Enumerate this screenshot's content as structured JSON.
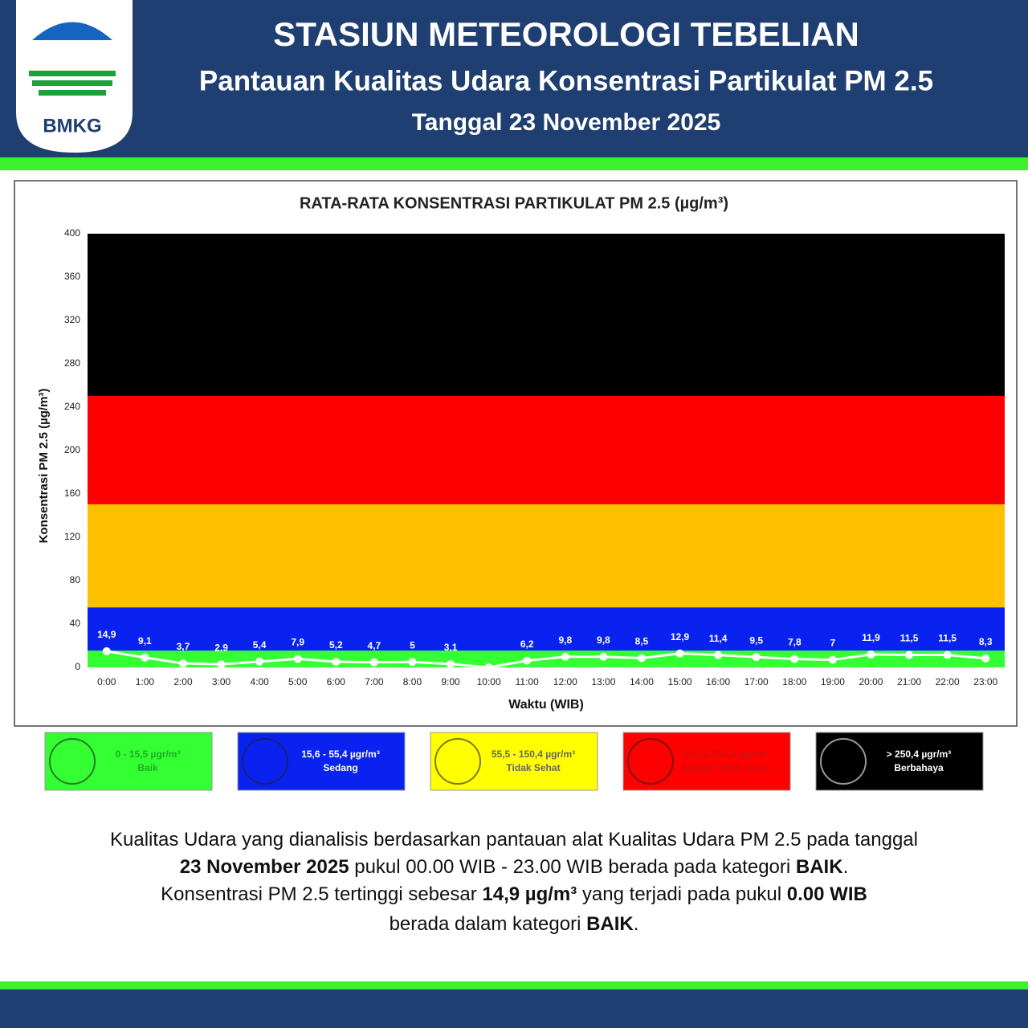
{
  "header": {
    "logo": "BMKG",
    "title": "STASIUN METEOROLOGI TEBELIAN",
    "subtitle": "Pantauan Kualitas Udara Konsentrasi Partikulat PM 2.5",
    "date": "Tanggal 23 November 2025"
  },
  "chart_data": {
    "type": "line",
    "title": "RATA-RATA KONSENTRASI PARTIKULAT PM 2.5 (µg/m³)",
    "x_label": "Waktu (WIB)",
    "y_label": "Konsentrasi PM 2.5 (µg/m³)",
    "categories": [
      "0:00",
      "1:00",
      "2:00",
      "3:00",
      "4:00",
      "5:00",
      "6:00",
      "7:00",
      "8:00",
      "9:00",
      "10:00",
      "11:00",
      "12:00",
      "13:00",
      "14:00",
      "15:00",
      "16:00",
      "17:00",
      "18:00",
      "19:00",
      "20:00",
      "21:00",
      "22:00",
      "23:00"
    ],
    "series": [
      {
        "name": "PM 2.5",
        "color": "#ffffff",
        "values": [
          14.9,
          9.1,
          3.7,
          2.9,
          5.4,
          7.9,
          5.2,
          4.7,
          5,
          3.1,
          0,
          6.2,
          9.8,
          9.8,
          8.5,
          12.9,
          11.4,
          9.5,
          7.8,
          7,
          11.9,
          11.5,
          11.5,
          8.3
        ],
        "value_labels": [
          "14,9",
          "9,1",
          "3,7",
          "2,9",
          "5,4",
          "7,9",
          "5,2",
          "4,7",
          "5",
          "3,1",
          null,
          "6,2",
          "9,8",
          "9,8",
          "8,5",
          "12,9",
          "11,4",
          "9,5",
          "7,8",
          "7",
          "11,9",
          "11,5",
          "11,5",
          "8,3"
        ]
      }
    ],
    "bands": [
      {
        "from": 0,
        "to": 15.5,
        "color": "#33ff33"
      },
      {
        "from": 15.5,
        "to": 55.4,
        "color": "#0a22f0"
      },
      {
        "from": 55.4,
        "to": 150.4,
        "color": "#ffc000"
      },
      {
        "from": 150.4,
        "to": 250.4,
        "color": "#ff0000"
      },
      {
        "from": 250.4,
        "to": 400,
        "color": "#000000"
      }
    ],
    "ylim": [
      0,
      400
    ],
    "yticks": [
      0,
      40,
      80,
      120,
      160,
      200,
      240,
      280,
      320,
      360,
      400
    ]
  },
  "legend": [
    {
      "range": "0 - 15,5 µgr/m³",
      "label": "Baik",
      "color": "#33ff33",
      "text_color": "#22aa22"
    },
    {
      "range": "15,6 - 55,4 µgr/m³",
      "label": "Sedang",
      "color": "#0a22f0",
      "text_color": "#ffffff"
    },
    {
      "range": "55,5 - 150,4 µgr/m³",
      "label": "Tidak Sehat",
      "color": "#ffff00",
      "text_color": "#666666"
    },
    {
      "range": "150,5-250,4 µgr/m³",
      "label": "Sangat Tidak Sehat",
      "color": "#ff0000",
      "text_color": "#cc1111"
    },
    {
      "range": "> 250,4 µgr/m³",
      "label": "Berbahaya",
      "color": "#000000",
      "text_color": "#ffffff"
    }
  ],
  "summary": {
    "lines": [
      [
        {
          "text": "Kualitas Udara yang dianalisis berdasarkan pantauan alat Kualitas Udara PM 2.5 pada tanggal",
          "bold": false
        }
      ],
      [
        {
          "text": "23 November 2025",
          "bold": true
        },
        {
          "text": " pukul 00.00 WIB - 23.00 WIB berada pada kategori ",
          "bold": false
        },
        {
          "text": "BAIK",
          "bold": true
        },
        {
          "text": ".",
          "bold": false
        }
      ],
      [
        {
          "text": "Konsentrasi PM 2.5 tertinggi sebesar ",
          "bold": false
        },
        {
          "text": "14,9 µg/m³",
          "bold": true
        },
        {
          "text": " yang terjadi pada pukul ",
          "bold": false
        },
        {
          "text": "0.00 WIB",
          "bold": true
        }
      ],
      [
        {
          "text": "berada dalam kategori ",
          "bold": false
        },
        {
          "text": "BAIK",
          "bold": true
        },
        {
          "text": ".",
          "bold": false
        }
      ]
    ]
  }
}
